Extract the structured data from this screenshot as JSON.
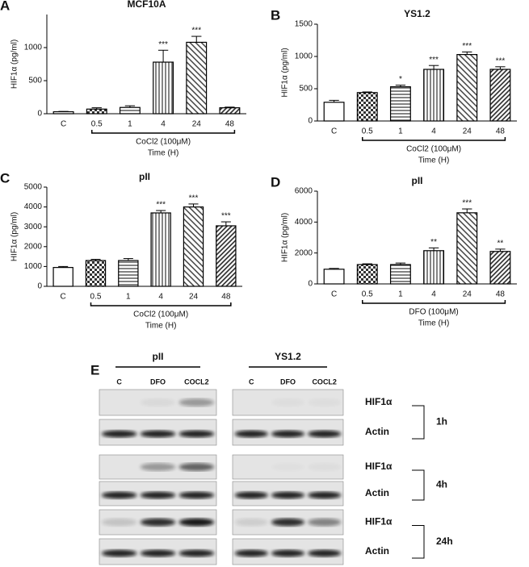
{
  "chart_data": [
    {
      "type": "bar",
      "letter": "A",
      "title": "MCF10A",
      "y_label": "HIF1α (pg/ml)",
      "categories": [
        "C",
        "0.5",
        "1",
        "4",
        "24",
        "48"
      ],
      "values": [
        30,
        70,
        95,
        780,
        1080,
        90
      ],
      "errors": [
        5,
        20,
        25,
        180,
        90,
        10
      ],
      "significance": [
        null,
        null,
        null,
        "***",
        "***",
        null
      ],
      "ylim": [
        0,
        1500
      ],
      "yticks": [
        0,
        500,
        1000
      ],
      "treatment": "CoCl2 (100μM)",
      "x_label": "Time (H)"
    },
    {
      "type": "bar",
      "letter": "B",
      "title": "YS1.2",
      "y_label": "HIF1α (pg/ml)",
      "categories": [
        "C",
        "0.5",
        "1",
        "4",
        "24",
        "48"
      ],
      "values": [
        290,
        440,
        530,
        800,
        1030,
        800
      ],
      "errors": [
        30,
        10,
        25,
        60,
        40,
        40
      ],
      "significance": [
        null,
        null,
        "*",
        "***",
        "***",
        "***"
      ],
      "ylim": [
        0,
        1500
      ],
      "yticks": [
        0,
        500,
        1000,
        1500
      ],
      "treatment": "CoCl2 (100μM)",
      "x_label": "Time (H)"
    },
    {
      "type": "bar",
      "letter": "C",
      "title": "pII",
      "y_label": "HIF1α (pg/ml)",
      "categories": [
        "C",
        "0.5",
        "1",
        "4",
        "24",
        "48"
      ],
      "values": [
        950,
        1300,
        1300,
        3700,
        4000,
        3050
      ],
      "errors": [
        50,
        60,
        100,
        120,
        150,
        200
      ],
      "significance": [
        null,
        null,
        null,
        "***",
        "***",
        "***"
      ],
      "ylim": [
        0,
        5000
      ],
      "yticks": [
        0,
        1000,
        2000,
        3000,
        4000,
        5000
      ],
      "treatment": "CoCl2 (100μM)",
      "x_label": "Time (H)"
    },
    {
      "type": "bar",
      "letter": "D",
      "title": "pII",
      "y_label": "HIF1α (pg/ml)",
      "categories": [
        "C",
        "0.5",
        "1",
        "4",
        "24",
        "48"
      ],
      "values": [
        950,
        1250,
        1250,
        2150,
        4600,
        2100
      ],
      "errors": [
        50,
        50,
        100,
        180,
        250,
        150
      ],
      "significance": [
        null,
        null,
        null,
        "**",
        "***",
        "**"
      ],
      "ylim": [
        0,
        6000
      ],
      "yticks": [
        0,
        2000,
        4000,
        6000
      ],
      "treatment": "DFO (100μM)",
      "x_label": "Time (H)"
    }
  ],
  "blot": {
    "letter": "E",
    "groups": [
      {
        "name": "pII",
        "lanes": [
          "C",
          "DFO",
          "COCL2"
        ]
      },
      {
        "name": "YS1.2",
        "lanes": [
          "C",
          "DFO",
          "COCL2"
        ]
      }
    ],
    "rows": [
      "HIF1α",
      "Actin",
      "HIF1α",
      "Actin",
      "HIF1α",
      "Actin"
    ],
    "times": [
      "1h",
      "4h",
      "24h"
    ]
  }
}
